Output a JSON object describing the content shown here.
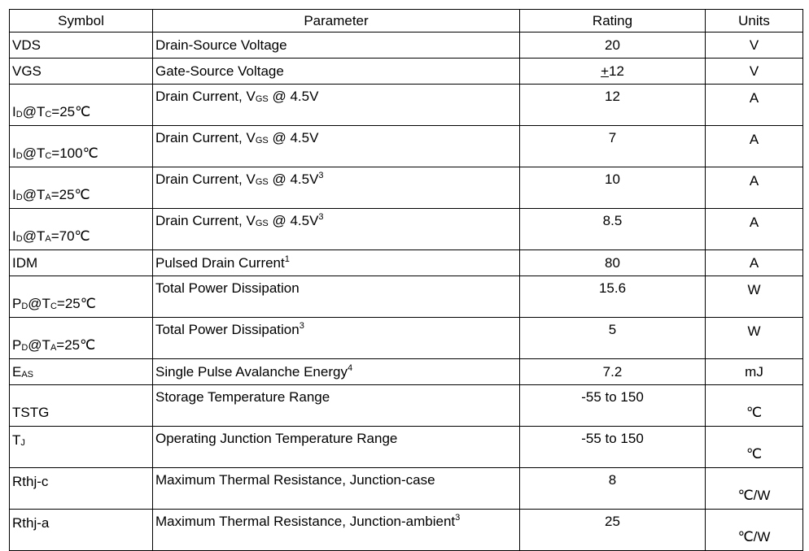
{
  "headers": {
    "symbol": "Symbol",
    "parameter": "Parameter",
    "rating": "Rating",
    "units": "Units"
  },
  "rows": [
    {
      "sym": "VDS",
      "par": "Drain-Source Voltage",
      "rating": "20",
      "unit": "V"
    },
    {
      "sym": "VGS",
      "par": "Gate-Source Voltage",
      "rating_prefix": "+",
      "rating": "12",
      "unit": "V"
    },
    {
      "sym": "I",
      "sym_sub": "D",
      "sym_mid": "@T",
      "sym_sub2": "C",
      "sym_rest": "=25℃",
      "par": "Drain Current, V",
      "par_sub": "GS",
      "par_rest": " @ 4.5V",
      "rating": "12",
      "unit": "A"
    },
    {
      "sym": "I",
      "sym_sub": "D",
      "sym_mid": "@T",
      "sym_sub2": "C",
      "sym_rest": "=100℃",
      "par": "Drain Current, V",
      "par_sub": "GS",
      "par_rest": " @ 4.5V",
      "rating": "7",
      "unit": "A"
    },
    {
      "sym": "I",
      "sym_sub": "D",
      "sym_mid": "@T",
      "sym_sub2": "A",
      "sym_rest": "=25℃",
      "par": "Drain Current, V",
      "par_sub": "GS",
      "par_rest": " @ 4.5V",
      "par_sup": "3",
      "rating": "10",
      "unit": "A"
    },
    {
      "sym": "I",
      "sym_sub": "D",
      "sym_mid": "@T",
      "sym_sub2": "A",
      "sym_rest": "=70℃",
      "par": "Drain Current, V",
      "par_sub": "GS",
      "par_rest": " @ 4.5V",
      "par_sup": "3",
      "rating": "8.5",
      "unit": "A"
    },
    {
      "sym": "IDM",
      "par": "Pulsed Drain Current",
      "par_sup": "1",
      "rating": "80",
      "unit": "A"
    },
    {
      "sym": "P",
      "sym_sub": "D",
      "sym_mid": "@T",
      "sym_sub2": "C",
      "sym_rest": "=25℃",
      "par": "Total Power Dissipation",
      "rating": "15.6",
      "unit": "W"
    },
    {
      "sym": "P",
      "sym_sub": "D",
      "sym_mid": "@T",
      "sym_sub2": "A",
      "sym_rest": "=25℃",
      "par": "Total Power Dissipation",
      "par_sup": "3",
      "rating": "5",
      "unit": "W"
    },
    {
      "sym": "E",
      "sym_sub": "AS",
      "par": "Single Pulse Avalanche Energy",
      "par_sup": "4",
      "rating": "7.2",
      "unit": "mJ"
    },
    {
      "sym": "TSTG",
      "par": "Storage Temperature Range",
      "rating": "-55 to 150",
      "unit": "℃"
    },
    {
      "sym": "T",
      "sym_sub": "J",
      "par": "Operating Junction Temperature Range",
      "rating": "-55 to 150",
      "unit": "℃"
    },
    {
      "sym": "Rthj-c",
      "par": "Maximum Thermal Resistance, Junction-case",
      "rating": "8",
      "unit": "℃/W"
    },
    {
      "sym": "Rthj-a",
      "par": "Maximum Thermal Resistance, Junction-ambient",
      "par_sup": "3",
      "rating": "25",
      "unit": "℃/W"
    }
  ]
}
